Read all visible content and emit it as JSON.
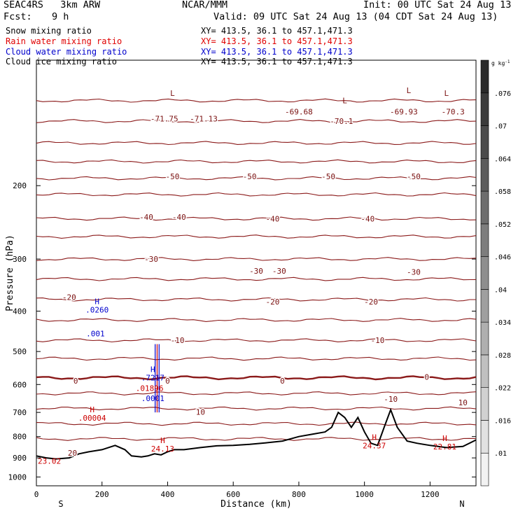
{
  "header": {
    "project": "SEAC4RS   3km ARW",
    "org": "NCAR/MMM",
    "init": "Init: 00 UTC Sat 24 Aug 13",
    "fcst_label": "Fcst:",
    "fcst_value": "9 h",
    "valid": "Valid: 09 UTC Sat 24 Aug 13 (04 CDT Sat 24 Aug 13)"
  },
  "fields": [
    {
      "name": "Snow mixing ratio",
      "xy": "XY= 413.5, 36.1 to 457.1,471.3",
      "color": "#000000"
    },
    {
      "name": "Rain water mixing ratio",
      "xy": "XY= 413.5, 36.1 to 457.1,471.3",
      "color": "#e00000"
    },
    {
      "name": "Cloud water mixing ratio",
      "xy": "XY= 413.5, 36.1 to 457.1,471.3",
      "color": "#0000cc"
    },
    {
      "name": "Cloud ice mixing ratio",
      "xy": "XY= 413.5, 36.1 to 457.1,471.3",
      "color": "#000000"
    }
  ],
  "chart_data": {
    "type": "contour",
    "xlabel": "Distance (km)",
    "ylabel": "Pressure (hPa)",
    "xlim": [
      0,
      1340
    ],
    "ylim": [
      1050,
      100
    ],
    "y_log": true,
    "xticks": [
      0,
      200,
      400,
      600,
      800,
      1000,
      1200
    ],
    "yticks": [
      200,
      300,
      400,
      500,
      600,
      700,
      800,
      900,
      1000
    ],
    "x_end_labels": {
      "left": "S",
      "right": "N"
    },
    "temperature_contours": [
      {
        "level": -70,
        "p": 125
      },
      {
        "level": -65,
        "p": 140
      },
      {
        "level": -60,
        "p": 158
      },
      {
        "level": -55,
        "p": 175
      },
      {
        "level": -50,
        "p": 192
      },
      {
        "level": -45,
        "p": 210
      },
      {
        "level": -40,
        "p": 240
      },
      {
        "level": -35,
        "p": 265
      },
      {
        "level": -30,
        "p": 300
      },
      {
        "level": -25,
        "p": 335
      },
      {
        "level": -20,
        "p": 375
      },
      {
        "level": -15,
        "p": 420
      },
      {
        "level": -10,
        "p": 470
      },
      {
        "level": -5,
        "p": 520
      },
      {
        "level": 0,
        "p": 578
      },
      {
        "level": 5,
        "p": 630
      },
      {
        "level": 10,
        "p": 685
      },
      {
        "level": 15,
        "p": 745
      },
      {
        "level": 20,
        "p": 810
      }
    ],
    "temperature_labels": [
      {
        "text": "-71.75",
        "x": 390,
        "p": 138
      },
      {
        "text": "-71.13",
        "x": 510,
        "p": 138
      },
      {
        "text": "-69.68",
        "x": 800,
        "p": 133
      },
      {
        "text": "-70.1",
        "x": 930,
        "p": 140
      },
      {
        "text": "-69.93",
        "x": 1120,
        "p": 133
      },
      {
        "text": "-70.3",
        "x": 1270,
        "p": 133
      },
      {
        "text": "-50",
        "x": 415,
        "p": 190
      },
      {
        "text": "-50",
        "x": 650,
        "p": 190
      },
      {
        "text": "-50",
        "x": 890,
        "p": 190
      },
      {
        "text": "-50",
        "x": 1150,
        "p": 190
      },
      {
        "text": "-40",
        "x": 335,
        "p": 238
      },
      {
        "text": "-40",
        "x": 435,
        "p": 238
      },
      {
        "text": "-40",
        "x": 720,
        "p": 240
      },
      {
        "text": "-40",
        "x": 1010,
        "p": 240
      },
      {
        "text": "-30",
        "x": 350,
        "p": 300
      },
      {
        "text": "-30",
        "x": 670,
        "p": 320
      },
      {
        "text": "-30",
        "x": 740,
        "p": 320
      },
      {
        "text": "-30",
        "x": 1150,
        "p": 322
      },
      {
        "text": "-20",
        "x": 100,
        "p": 370
      },
      {
        "text": "-20",
        "x": 720,
        "p": 380
      },
      {
        "text": "-20",
        "x": 1020,
        "p": 380
      },
      {
        "text": "-10",
        "x": 430,
        "p": 470
      },
      {
        "text": "-10",
        "x": 1040,
        "p": 470
      },
      {
        "text": "0",
        "x": 120,
        "p": 588
      },
      {
        "text": "0",
        "x": 400,
        "p": 588
      },
      {
        "text": "0",
        "x": 750,
        "p": 588
      },
      {
        "text": "0",
        "x": 1190,
        "p": 575
      },
      {
        "text": "-10",
        "x": 1080,
        "p": 650
      },
      {
        "text": "10",
        "x": 500,
        "p": 698
      },
      {
        "text": "10",
        "x": 1300,
        "p": 663
      },
      {
        "text": "20",
        "x": 110,
        "p": 875
      }
    ],
    "highs": [
      {
        "text": "H",
        "x": 185,
        "p": 385,
        "value": ".0260",
        "color": "#0000cc"
      },
      {
        "text": "H",
        "x": 355,
        "p": 560,
        "value": ".7217",
        "color": "#0000cc"
      },
      {
        "text": "H",
        "x": 170,
        "p": 700,
        "value": ".00004",
        "color": "#cc0000"
      },
      {
        "text": "H",
        "x": 1030,
        "p": 815,
        "value": "24.37",
        "color": "#cc0000"
      },
      {
        "text": "H",
        "x": 1245,
        "p": 820,
        "value": "22.81",
        "color": "#cc0000"
      },
      {
        "text": "H",
        "x": 385,
        "p": 830,
        "value": "24.13",
        "color": "#cc0000"
      }
    ],
    "lows": [
      {
        "text": "L",
        "x": 415,
        "p": 120
      },
      {
        "text": "L",
        "x": 940,
        "p": 125
      },
      {
        "text": "L",
        "x": 1250,
        "p": 120
      },
      {
        "text": "L",
        "x": 1135,
        "p": 118
      }
    ],
    "point_labels": [
      {
        "text": ".001",
        "x": 180,
        "p": 453,
        "color": "#0000cc"
      },
      {
        "text": ".01896",
        "x": 345,
        "p": 612,
        "color": "#cc0000"
      },
      {
        "text": ".0001",
        "x": 355,
        "p": 648,
        "color": "#0000cc"
      },
      {
        "text": "23.02",
        "x": 0,
        "p": 915,
        "color": "#cc0000"
      }
    ],
    "terrain_surface_pressure": [
      [
        0,
        890
      ],
      [
        30,
        900
      ],
      [
        60,
        905
      ],
      [
        100,
        900
      ],
      [
        130,
        880
      ],
      [
        160,
        870
      ],
      [
        200,
        860
      ],
      [
        240,
        840
      ],
      [
        270,
        860
      ],
      [
        290,
        890
      ],
      [
        320,
        895
      ],
      [
        340,
        890
      ],
      [
        360,
        880
      ],
      [
        380,
        885
      ],
      [
        400,
        870
      ],
      [
        420,
        860
      ],
      [
        450,
        860
      ],
      [
        500,
        850
      ],
      [
        550,
        842
      ],
      [
        600,
        840
      ],
      [
        650,
        835
      ],
      [
        700,
        828
      ],
      [
        750,
        820
      ],
      [
        800,
        800
      ],
      [
        840,
        790
      ],
      [
        880,
        780
      ],
      [
        900,
        760
      ],
      [
        920,
        700
      ],
      [
        940,
        720
      ],
      [
        960,
        760
      ],
      [
        980,
        720
      ],
      [
        1000,
        780
      ],
      [
        1020,
        830
      ],
      [
        1040,
        840
      ],
      [
        1060,
        760
      ],
      [
        1080,
        690
      ],
      [
        1100,
        760
      ],
      [
        1130,
        820
      ],
      [
        1160,
        830
      ],
      [
        1200,
        840
      ],
      [
        1250,
        850
      ],
      [
        1300,
        845
      ],
      [
        1340,
        815
      ]
    ],
    "colorbar": {
      "unit": "g kg",
      "unit_exp": "-1",
      "ticks": [
        ".01",
        ".016",
        ".022",
        ".028",
        ".034",
        ".04",
        ".046",
        ".052",
        ".058",
        ".064",
        ".07",
        ".076"
      ],
      "color_low": "#f2f2f2",
      "color_high": "#2a2a2a"
    },
    "colors": {
      "temperature": "#8b1a1a",
      "terrain": "#000000",
      "cloud_water": "#0000cc",
      "rain_water": "#cc0000"
    }
  }
}
